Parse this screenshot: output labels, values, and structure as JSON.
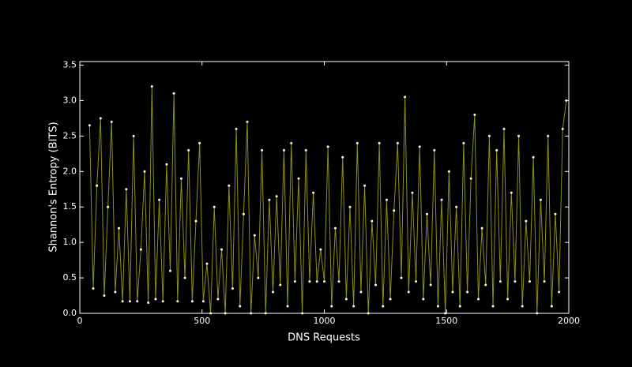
{
  "chart_data": {
    "type": "line",
    "xlabel": "DNS Requests",
    "ylabel": "Shannon's Entropy (BITS)",
    "x": [
      40,
      55,
      70,
      85,
      100,
      115,
      130,
      145,
      160,
      175,
      190,
      205,
      220,
      235,
      250,
      265,
      280,
      295,
      310,
      325,
      340,
      355,
      370,
      385,
      400,
      415,
      430,
      445,
      460,
      475,
      490,
      505,
      520,
      535,
      550,
      565,
      580,
      595,
      610,
      625,
      640,
      655,
      670,
      685,
      700,
      715,
      730,
      745,
      760,
      775,
      790,
      805,
      820,
      835,
      850,
      865,
      880,
      895,
      910,
      925,
      940,
      955,
      970,
      985,
      1000,
      1015,
      1030,
      1045,
      1060,
      1075,
      1090,
      1105,
      1120,
      1135,
      1150,
      1165,
      1180,
      1195,
      1210,
      1225,
      1240,
      1255,
      1270,
      1285,
      1300,
      1315,
      1330,
      1345,
      1360,
      1375,
      1390,
      1405,
      1420,
      1435,
      1450,
      1465,
      1480,
      1495,
      1510,
      1525,
      1540,
      1555,
      1570,
      1585,
      1600,
      1615,
      1630,
      1645,
      1660,
      1675,
      1690,
      1705,
      1720,
      1735,
      1750,
      1765,
      1780,
      1795,
      1810,
      1825,
      1840,
      1855,
      1870,
      1885,
      1900,
      1915,
      1930,
      1945,
      1960,
      1975,
      1990
    ],
    "values": [
      2.65,
      0.35,
      1.8,
      2.75,
      0.25,
      1.5,
      2.7,
      0.3,
      1.2,
      0.17,
      1.75,
      0.17,
      2.5,
      0.17,
      0.9,
      2.0,
      0.15,
      3.2,
      0.2,
      1.6,
      0.17,
      2.1,
      0.6,
      3.1,
      0.17,
      1.9,
      0.5,
      2.3,
      0.17,
      1.3,
      2.4,
      0.17,
      0.7,
      0.0,
      1.5,
      0.2,
      0.9,
      0.0,
      1.8,
      0.35,
      2.6,
      0.1,
      1.4,
      2.7,
      0.0,
      1.1,
      0.5,
      2.3,
      0.0,
      1.6,
      0.3,
      1.65,
      0.4,
      2.3,
      0.1,
      2.4,
      0.45,
      1.9,
      0.0,
      2.3,
      0.45,
      1.7,
      0.45,
      0.9,
      0.45,
      2.35,
      0.1,
      1.2,
      0.45,
      2.2,
      0.2,
      1.5,
      0.1,
      2.4,
      0.3,
      1.8,
      0.0,
      1.3,
      0.4,
      2.4,
      0.1,
      1.6,
      0.2,
      1.45,
      2.4,
      0.5,
      3.05,
      0.3,
      1.7,
      0.45,
      2.35,
      0.2,
      1.4,
      0.4,
      2.3,
      0.1,
      1.6,
      0.0,
      2.0,
      0.3,
      1.5,
      0.1,
      2.4,
      0.3,
      1.9,
      2.8,
      0.2,
      1.2,
      0.4,
      2.5,
      0.1,
      2.3,
      0.45,
      2.6,
      0.2,
      1.7,
      0.45,
      2.5,
      0.1,
      1.3,
      0.45,
      2.2,
      0.0,
      1.6,
      0.45,
      2.5,
      0.1,
      1.4,
      0.3,
      2.6,
      3.0
    ],
    "color": "#8f8f14",
    "marker_color": "#ffffff",
    "xlim": [
      0,
      2000
    ],
    "xticks": [
      0,
      500,
      1000,
      1500,
      2000
    ],
    "ylim": [
      0,
      3.55
    ],
    "yticks": [
      {
        "value": 0,
        "label": "0.0"
      },
      {
        "value": 0.5,
        "label": "0.5"
      },
      {
        "value": 1,
        "label": "1.0"
      },
      {
        "value": 1.5,
        "label": "1.5"
      },
      {
        "value": 2,
        "label": "2.0"
      },
      {
        "value": 2.5,
        "label": "2.5"
      },
      {
        "value": 3,
        "label": "3.0"
      },
      {
        "value": 3.5,
        "label": "3.5"
      }
    ]
  }
}
